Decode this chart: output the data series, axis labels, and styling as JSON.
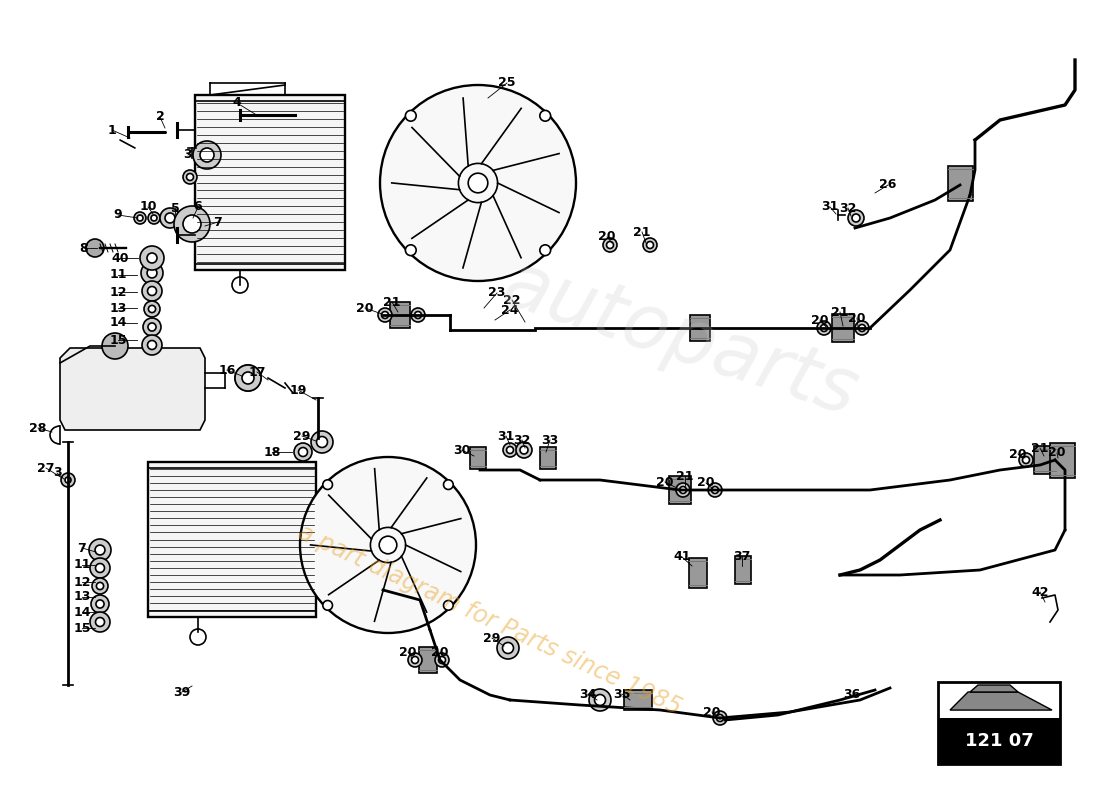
{
  "background_color": "#ffffff",
  "watermark_color": "#e8a020",
  "watermark_alpha": 0.45,
  "page_ref": "121 07",
  "label_color": "#000000",
  "drawing_color": "#000000",
  "label_fontsize": 9
}
